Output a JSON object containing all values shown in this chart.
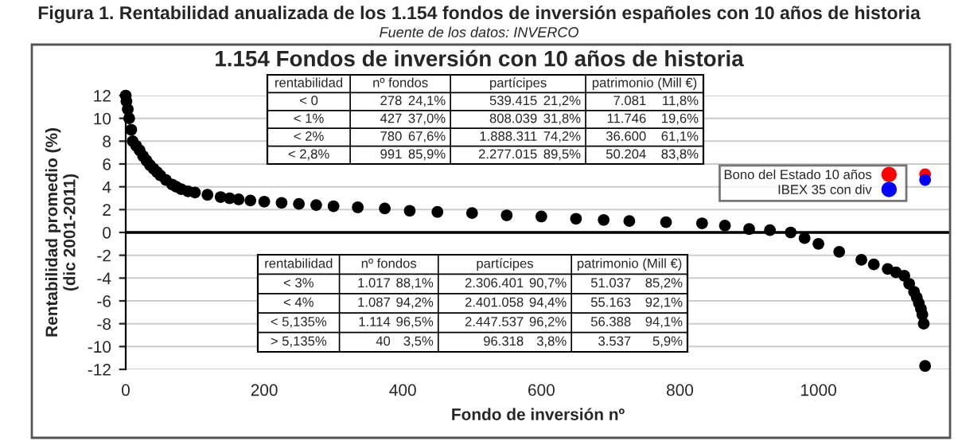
{
  "chart_data": {
    "type": "scatter",
    "title": "Figura 1. Rentabilidad anualizada de los 1.154 fondos de inversión españoles con 10 años de historia",
    "subtitle": "1.154 Fondos de inversión con 10 años de historia",
    "xlabel": "Fondo de inversión nº",
    "ylabel": "Rentabilidad promedio (%)\n(dic 2001-2011)",
    "xlim": [
      0,
      1190
    ],
    "ylim": [
      -12,
      12
    ],
    "xticks": [
      0,
      200,
      400,
      600,
      800,
      1000
    ],
    "yticks": [
      -12,
      -10,
      -8,
      -6,
      -4,
      -2,
      0,
      2,
      4,
      6,
      8,
      10,
      12
    ],
    "grid": "y",
    "legend": "right",
    "marker": "circle",
    "ref_lines": [
      {
        "axis": "y",
        "value": 0,
        "color": "#000000"
      }
    ],
    "series": [
      {
        "color": "#000000",
        "x": [
          0,
          1,
          3,
          5,
          8,
          10,
          15,
          20,
          25,
          30,
          35,
          40,
          45,
          50,
          58,
          67,
          73,
          80,
          90,
          100,
          118,
          137,
          150,
          163,
          180,
          200,
          225,
          250,
          275,
          300,
          335,
          374,
          410,
          450,
          500,
          550,
          600,
          650,
          690,
          727,
          780,
          832,
          865,
          900,
          930,
          960,
          980,
          1000,
          1030,
          1062,
          1080,
          1100,
          1112,
          1124,
          1131,
          1138,
          1142,
          1145,
          1148,
          1150,
          1152,
          1154
        ],
        "values": [
          12,
          11.5,
          10.8,
          10,
          9,
          8,
          7.6,
          7.2,
          6.7,
          6.3,
          5.9,
          5.6,
          5.3,
          5,
          4.6,
          4.2,
          4,
          3.8,
          3.6,
          3.5,
          3.3,
          3.1,
          3,
          2.9,
          2.8,
          2.7,
          2.6,
          2.5,
          2.4,
          2.3,
          2.2,
          2.1,
          1.9,
          1.8,
          1.7,
          1.5,
          1.4,
          1.2,
          1.1,
          1.0,
          0.9,
          0.8,
          0.6,
          0.3,
          0.2,
          0,
          -0.5,
          -1.0,
          -1.7,
          -2.4,
          -2.8,
          -3.2,
          -3.5,
          -3.8,
          -4.5,
          -5.2,
          -5.7,
          -6.2,
          -6.7,
          -7.2,
          -8,
          -11.7
        ]
      },
      {
        "name": "Bono del Estado 10 años",
        "color": "#ff0000",
        "x": [
          1154
        ],
        "values": [
          5.1
        ]
      },
      {
        "name": "IBEX 35 con div",
        "color": "#0000ff",
        "x": [
          1154
        ],
        "values": [
          4.6
        ]
      }
    ],
    "annotations": [
      "Fuente de los datos: INVERCO",
      "rentabilidad",
      "nº fondos",
      "partícipes",
      "patrimonio (Mill €)",
      "< 0",
      "278",
      "24,1%",
      "539.415",
      "21,2%",
      "7.081",
      "11,8%",
      "< 1%",
      "427",
      "37,0%",
      "808.039",
      "31,8%",
      "11.746",
      "19,6%",
      "< 2%",
      "780",
      "67,6%",
      "1.888.311",
      "74,2%",
      "36.600",
      "61,1%",
      "< 2,8%",
      "991",
      "85,9%",
      "2.277.015",
      "89,5%",
      "50.204",
      "83,8%",
      "rentabilidad",
      "nº fondos",
      "partícipes",
      "patrimonio (Mill €)",
      "< 3%",
      "1.017",
      "88,1%",
      "2.306.401",
      "90,7%",
      "51.037",
      "85,2%",
      "< 4%",
      "1.087",
      "94,2%",
      "2.401.058",
      "94,4%",
      "55.163",
      "92,1%",
      "< 5,135%",
      "1.114",
      "96,5%",
      "2.447.537",
      "96,2%",
      "56.388",
      "94,1%",
      "> 5,135%",
      "40",
      "3,5%",
      "96.318",
      "3,8%",
      "3.537",
      "5,9%"
    ]
  }
}
